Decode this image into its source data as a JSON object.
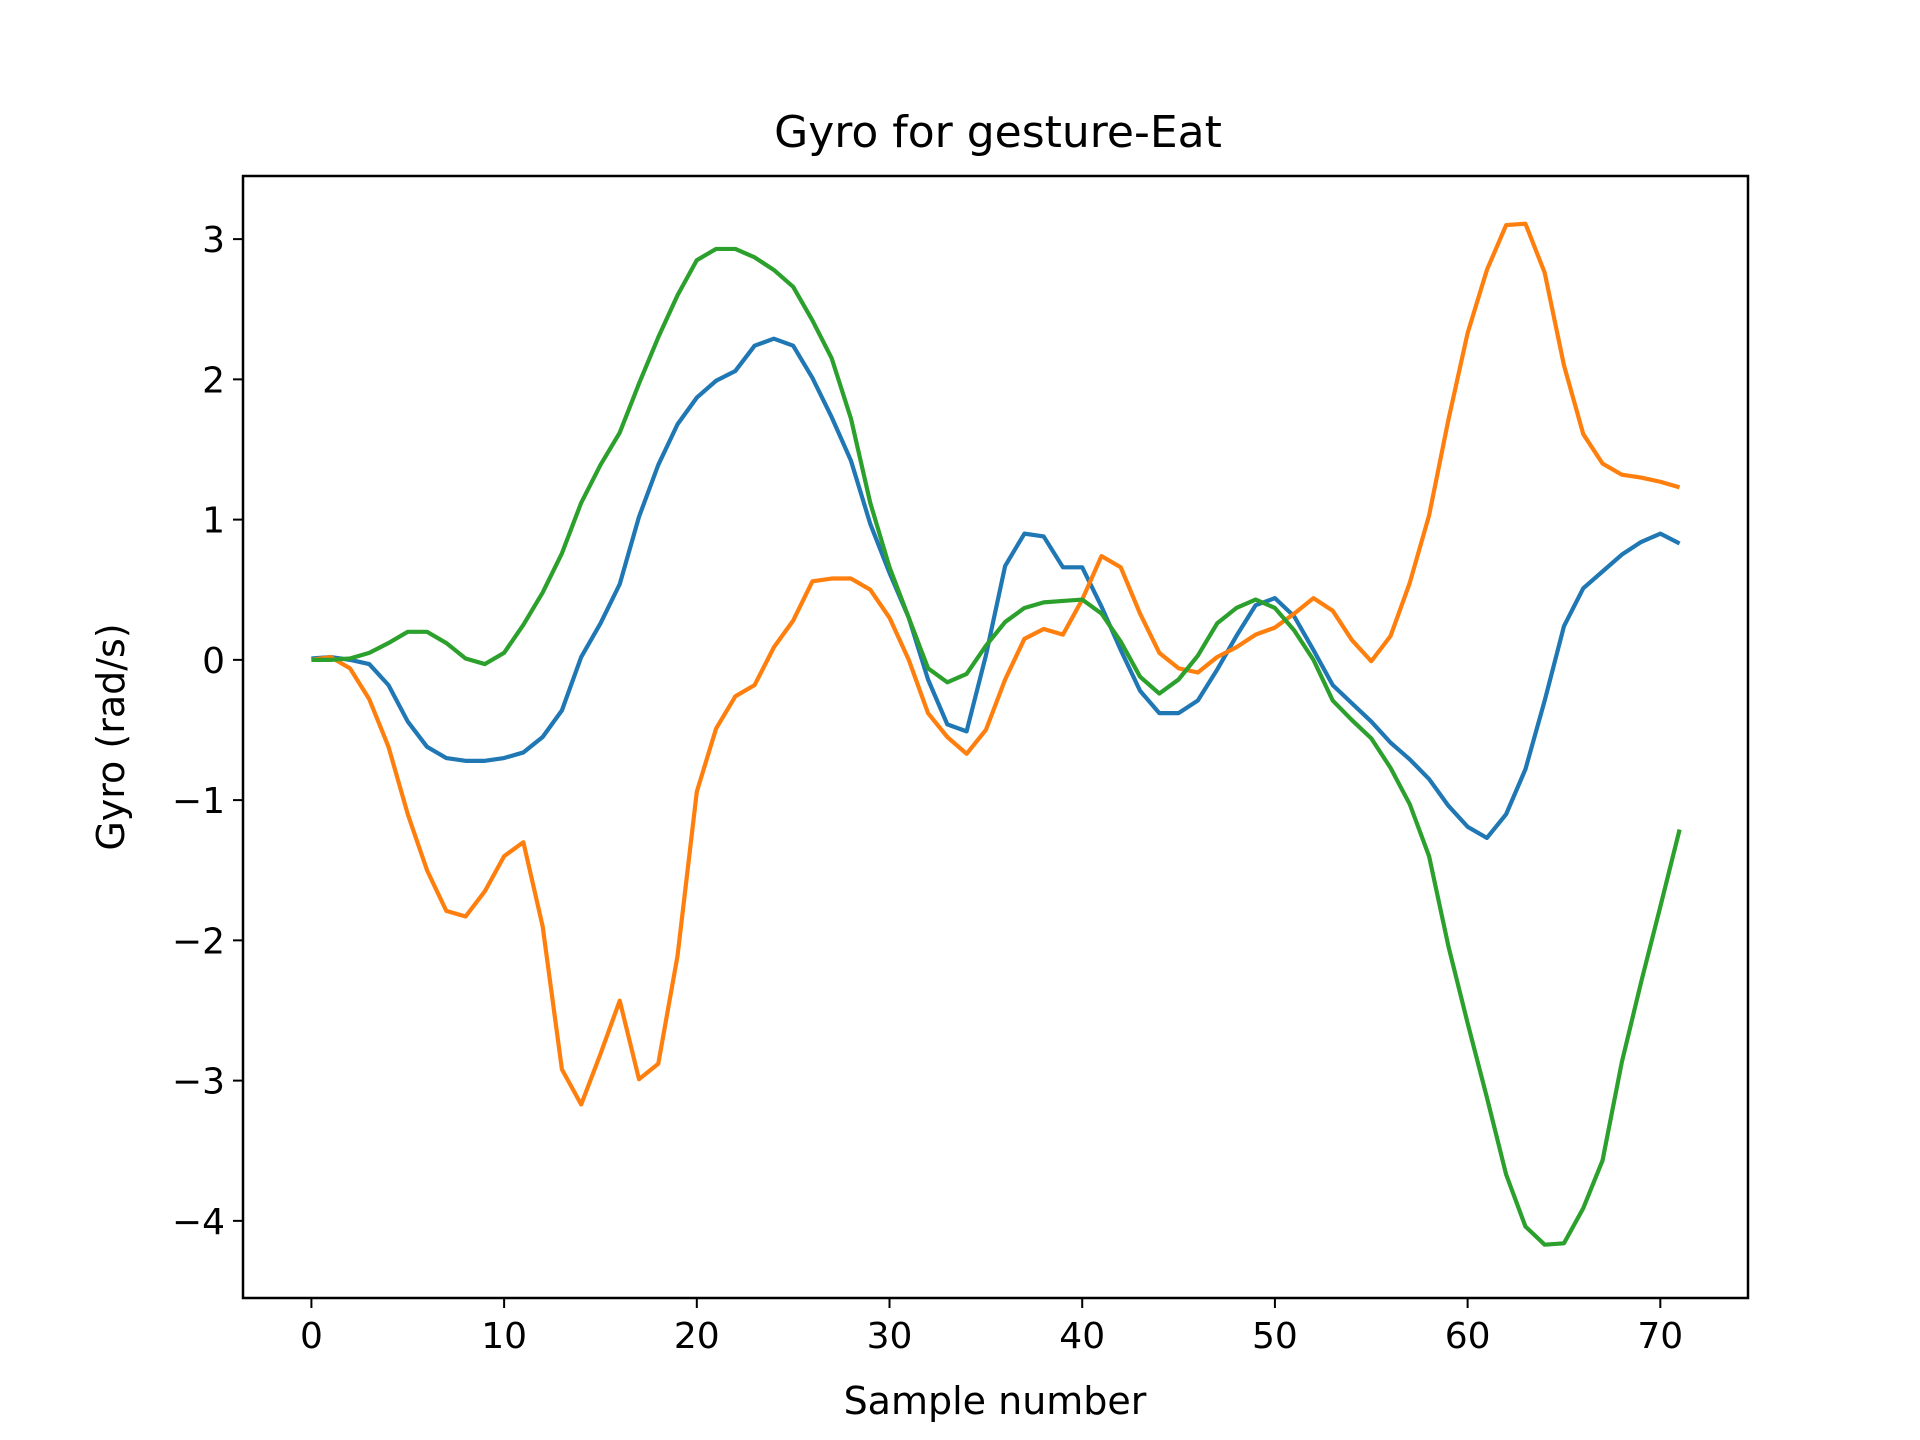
{
  "chart_data": {
    "type": "line",
    "title": "Gyro for gesture-Eat",
    "xlabel": "Sample number",
    "ylabel": "Gyro  (rad/s)",
    "xlim": [
      -3.55,
      74.55
    ],
    "ylim": [
      -4.55,
      3.45
    ],
    "xticks": [
      0,
      10,
      20,
      30,
      40,
      50,
      60,
      70
    ],
    "yticks": [
      3,
      2,
      1,
      0,
      -1,
      -2,
      -3,
      -4
    ],
    "xtick_labels": [
      "0",
      "10",
      "20",
      "30",
      "40",
      "50",
      "60",
      "70"
    ],
    "ytick_labels": [
      "3",
      "2",
      "1",
      "0",
      "−1",
      "−2",
      "−3",
      "−4"
    ],
    "grid": false,
    "legend": false,
    "x": [
      0,
      1,
      2,
      3,
      4,
      5,
      6,
      7,
      8,
      9,
      10,
      11,
      12,
      13,
      14,
      15,
      16,
      17,
      18,
      19,
      20,
      21,
      22,
      23,
      24,
      25,
      26,
      27,
      28,
      29,
      30,
      31,
      32,
      33,
      34,
      35,
      36,
      37,
      38,
      39,
      40,
      41,
      42,
      43,
      44,
      45,
      46,
      47,
      48,
      49,
      50,
      51,
      52,
      53,
      54,
      55,
      56,
      57,
      58,
      59,
      60,
      61,
      62,
      63,
      64,
      65,
      66,
      67,
      68,
      69,
      70,
      71
    ],
    "series": [
      {
        "color": "#1f77b4",
        "values": [
          0.01,
          0.02,
          0.0,
          -0.03,
          -0.18,
          -0.44,
          -0.62,
          -0.7,
          -0.72,
          -0.72,
          -0.7,
          -0.66,
          -0.55,
          -0.36,
          0.02,
          0.26,
          0.54,
          1.02,
          1.39,
          1.68,
          1.87,
          1.99,
          2.06,
          2.24,
          2.29,
          2.24,
          2.01,
          1.73,
          1.42,
          0.97,
          0.62,
          0.3,
          -0.14,
          -0.46,
          -0.51,
          0.03,
          0.67,
          0.9,
          0.88,
          0.66,
          0.66,
          0.38,
          0.07,
          -0.22,
          -0.38,
          -0.38,
          -0.29,
          -0.07,
          0.17,
          0.39,
          0.44,
          0.31,
          0.07,
          -0.18,
          -0.31,
          -0.44,
          -0.59,
          -0.71,
          -0.85,
          -1.04,
          -1.19,
          -1.27,
          -1.1,
          -0.78,
          -0.29,
          0.24,
          0.51,
          0.63,
          0.75,
          0.84,
          0.9,
          0.83
        ]
      },
      {
        "color": "#ff7f0e",
        "values": [
          0.0,
          0.02,
          -0.06,
          -0.28,
          -0.62,
          -1.1,
          -1.5,
          -1.79,
          -1.83,
          -1.65,
          -1.4,
          -1.3,
          -1.9,
          -2.92,
          -3.17,
          -2.81,
          -2.43,
          -2.99,
          -2.88,
          -2.11,
          -0.94,
          -0.49,
          -0.26,
          -0.18,
          0.09,
          0.28,
          0.56,
          0.58,
          0.58,
          0.5,
          0.3,
          0.0,
          -0.38,
          -0.55,
          -0.67,
          -0.5,
          -0.14,
          0.15,
          0.22,
          0.18,
          0.43,
          0.74,
          0.66,
          0.33,
          0.05,
          -0.06,
          -0.09,
          0.02,
          0.09,
          0.18,
          0.23,
          0.33,
          0.44,
          0.35,
          0.14,
          -0.01,
          0.17,
          0.55,
          1.03,
          1.71,
          2.33,
          2.78,
          3.1,
          3.11,
          2.76,
          2.1,
          1.61,
          1.4,
          1.32,
          1.3,
          1.27,
          1.23
        ]
      },
      {
        "color": "#2ca02c",
        "values": [
          0.0,
          0.0,
          0.01,
          0.05,
          0.12,
          0.2,
          0.2,
          0.12,
          0.01,
          -0.03,
          0.05,
          0.25,
          0.48,
          0.76,
          1.12,
          1.39,
          1.62,
          1.97,
          2.3,
          2.6,
          2.85,
          2.93,
          2.93,
          2.87,
          2.78,
          2.66,
          2.42,
          2.15,
          1.72,
          1.12,
          0.66,
          0.3,
          -0.06,
          -0.16,
          -0.1,
          0.1,
          0.27,
          0.37,
          0.41,
          0.42,
          0.43,
          0.33,
          0.13,
          -0.12,
          -0.24,
          -0.14,
          0.03,
          0.26,
          0.37,
          0.43,
          0.37,
          0.21,
          0.0,
          -0.29,
          -0.43,
          -0.56,
          -0.77,
          -1.03,
          -1.4,
          -2.04,
          -2.59,
          -3.12,
          -3.67,
          -4.04,
          -4.17,
          -4.16,
          -3.91,
          -3.57,
          -2.87,
          -2.3,
          -1.76,
          -1.21
        ]
      }
    ]
  }
}
